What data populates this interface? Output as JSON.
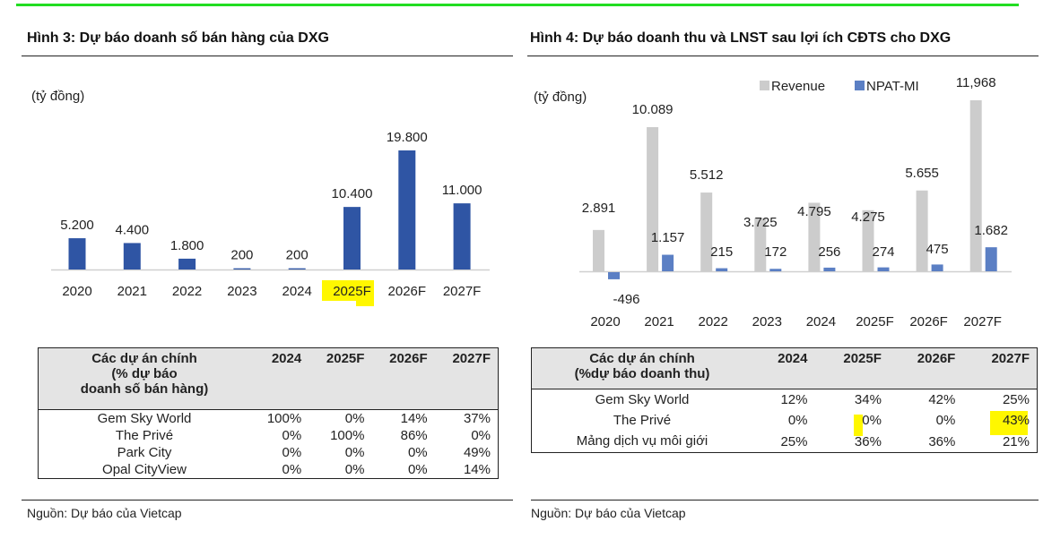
{
  "figure3": {
    "title": "Hình 3: Dự báo doanh số bán hàng của DXG",
    "unit": "(tỷ đồng)",
    "source": "Nguồn: Dự báo của Vietcap",
    "table": {
      "header": [
        "Các dự án chính",
        "(% dự báo",
        "doanh số bán hàng)"
      ],
      "years": [
        "2024",
        "2025F",
        "2026F",
        "2027F"
      ],
      "rows": [
        {
          "project": "Gem Sky World",
          "values": [
            "100%",
            "0%",
            "14%",
            "37%"
          ]
        },
        {
          "project": "The Privé",
          "values": [
            "0%",
            "100%",
            "86%",
            "0%"
          ]
        },
        {
          "project": "Park City",
          "values": [
            "0%",
            "0%",
            "0%",
            "49%"
          ]
        },
        {
          "project": "Opal CityView",
          "values": [
            "0%",
            "0%",
            "0%",
            "14%"
          ]
        }
      ]
    }
  },
  "figure4": {
    "title": "Hình 4: Dự báo doanh thu và LNST sau lợi ích CĐTS cho DXG",
    "unit": "(tỷ đồng)",
    "source": "Nguồn: Dự báo của Vietcap",
    "table": {
      "header": [
        "Các dự án chính",
        "(%dự báo doanh thu)"
      ],
      "years": [
        "2024",
        "2025F",
        "2026F",
        "2027F"
      ],
      "rows": [
        {
          "project": "Gem Sky World",
          "values": [
            "12%",
            "34%",
            "42%",
            "25%"
          ]
        },
        {
          "project": "The Privé",
          "values": [
            "0%",
            "0%",
            "0%",
            "43%"
          ]
        },
        {
          "project": "Mảng dịch vụ môi giới",
          "values": [
            "25%",
            "36%",
            "36%",
            "21%"
          ]
        }
      ]
    }
  },
  "colors": {
    "accent_rule": "#22dd22",
    "bar_blue": "#2f55a4",
    "revenue_gray": "#cccccc",
    "npat_blue": "#5b7fc4",
    "highlight": "#fff700"
  },
  "chart_data": [
    {
      "type": "bar",
      "title": "Hình 3: Dự báo doanh số bán hàng của DXG",
      "ylabel": "(tỷ đồng)",
      "xlabel": "",
      "categories": [
        "2020",
        "2021",
        "2022",
        "2023",
        "2024",
        "2025F",
        "2026F",
        "2027F"
      ],
      "values": [
        5200,
        4400,
        1800,
        200,
        200,
        10400,
        19800,
        11000
      ],
      "labels": [
        "5.200",
        "4.400",
        "1.800",
        "200",
        "200",
        "10.400",
        "19.800",
        "11.000"
      ],
      "highlighted_category": "2025F",
      "ylim": [
        0,
        19800
      ],
      "grid": false,
      "legend": "none"
    },
    {
      "type": "bar",
      "title": "Hình 4: Dự báo doanh thu và LNST sau lợi ích CĐTS cho DXG",
      "ylabel": "(tỷ đồng)",
      "xlabel": "",
      "categories": [
        "2020",
        "2021",
        "2022",
        "2023",
        "2024",
        "2025F",
        "2026F",
        "2027F"
      ],
      "series": [
        {
          "name": "Revenue",
          "values": [
            2891,
            10089,
            5512,
            3725,
            4795,
            4275,
            5655,
            11968
          ],
          "labels": [
            "2.891",
            "10.089",
            "5.512",
            "3.725",
            "4.795",
            "4.275",
            "5.655",
            "11,968"
          ]
        },
        {
          "name": "NPAT-MI",
          "values": [
            -496,
            1157,
            215,
            172,
            256,
            274,
            475,
            1682
          ],
          "labels": [
            "-496",
            "1.157",
            "215",
            "172",
            "256",
            "274",
            "475",
            "1.682"
          ]
        }
      ],
      "ylim": [
        -496,
        11968
      ],
      "grid": false,
      "legend": "top-right"
    }
  ]
}
